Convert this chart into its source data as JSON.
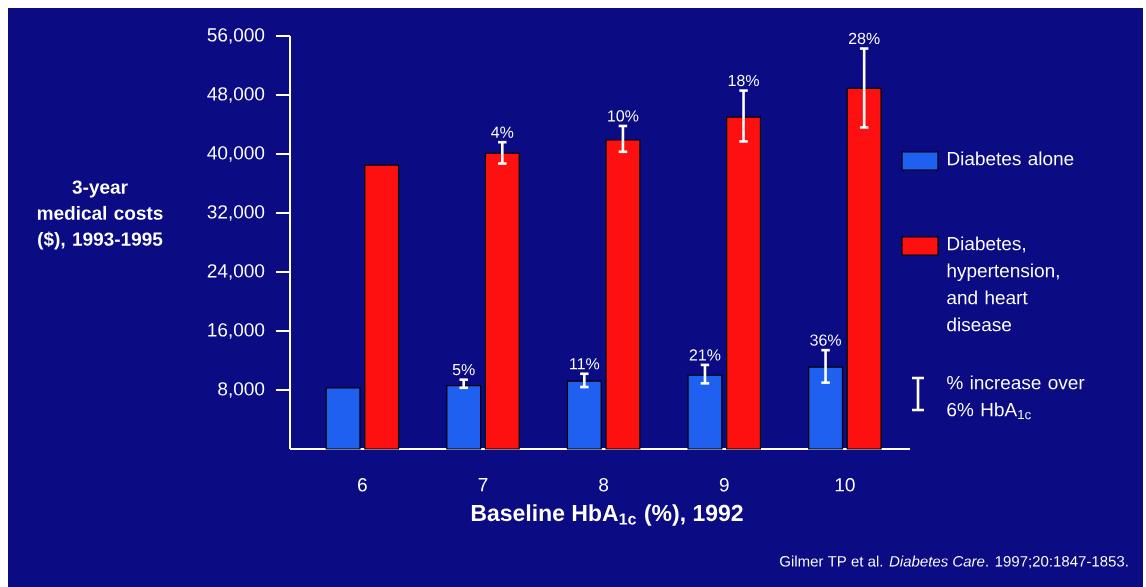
{
  "chart_data": {
    "type": "bar",
    "xlabel": "Baseline HbA$_{1c}$ (%), 1992",
    "ylabel": "3-year medical costs ($), 1993-1995",
    "categories": [
      "6",
      "7",
      "8",
      "9",
      "10"
    ],
    "ylim": [
      0,
      56000
    ],
    "yticks": [
      {
        "value": 8000,
        "label": "8,000"
      },
      {
        "value": 16000,
        "label": "16,000"
      },
      {
        "value": 24000,
        "label": "24,000"
      },
      {
        "value": 32000,
        "label": "32,000"
      },
      {
        "value": 40000,
        "label": "40,000"
      },
      {
        "value": 48000,
        "label": "48,000"
      },
      {
        "value": 56000,
        "label": "56,000"
      }
    ],
    "legend": "right",
    "series": [
      {
        "name": "Diabetes alone",
        "color": "#2060f0",
        "values": [
          8300,
          8600,
          9200,
          10000,
          11100
        ],
        "errors": [
          null,
          [
            8300,
            9400
          ],
          [
            8400,
            10200
          ],
          [
            8900,
            11400
          ],
          [
            9000,
            13400
          ]
        ]
      },
      {
        "name": "Diabetes, hypertension, and heart disease",
        "color": "#ff1010",
        "values": [
          38500,
          40100,
          41900,
          45000,
          48900
        ],
        "errors": [
          null,
          [
            38700,
            41600
          ],
          [
            40300,
            43800
          ],
          [
            41700,
            48600
          ],
          [
            43600,
            54300
          ]
        ]
      }
    ],
    "annotations": [
      "% increase over 6% HbA$_{1c}$",
      "Gilmer TP et al. *Diabetes Care*. 1997;20:1847-1853.",
      {
        "text": "5%",
        "x": "7",
        "y": 9400
      },
      {
        "text": "11%",
        "x": "8",
        "y": 10200
      },
      {
        "text": "21%",
        "x": "9",
        "y": 11400
      },
      {
        "text": "36%",
        "x": "10",
        "y": 13400
      },
      {
        "text": "4%",
        "x": "7",
        "y": 40100
      },
      {
        "text": "10%",
        "x": "8",
        "y": 41900
      },
      {
        "text": "18%",
        "x": "9",
        "y": 45000
      },
      {
        "text": "28%",
        "x": "10",
        "y": 48900
      }
    ]
  }
}
